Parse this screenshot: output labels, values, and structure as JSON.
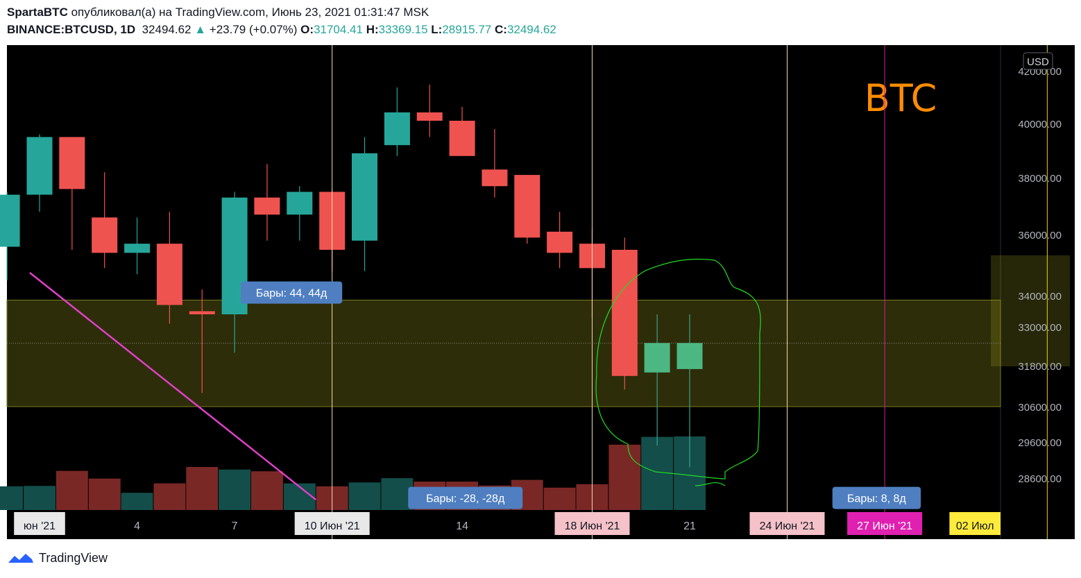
{
  "header": {
    "author": "SpartaBTC",
    "published_text": "опубликовал(а) на TradingView.com, Июнь 23, 2021 01:31:47 MSK",
    "symbol": "BINANCE:BTCUSD, 1D",
    "last": "32494.62",
    "change_arrow": "▲",
    "change": "+23.79 (+0.07%)",
    "o_label": "O:",
    "o_value": "31704.41",
    "h_label": "H:",
    "h_value": "33369.15",
    "l_label": "L:",
    "l_value": "28915.77",
    "c_label": "C:",
    "c_value": "32494.62"
  },
  "footer": {
    "brand": "TradingView"
  },
  "chart_data": {
    "type": "candlestick",
    "currency_badge": "USD",
    "watermark": "BTC",
    "y_ticks": [
      40000,
      38000,
      36000,
      34000,
      33000,
      31800,
      30600,
      29600,
      28600
    ],
    "y_tick_labels": [
      "40000.00",
      "38000.00",
      "36000.00",
      "34000.00",
      "33000.00",
      "31800.00",
      "30600.00",
      "29600.00",
      "28600.00"
    ],
    "y_top_label_partial": "42000.00",
    "x_labels": [
      {
        "text": "юн '21",
        "style": "plain-box",
        "day": 1
      },
      {
        "text": "4",
        "style": "plain",
        "day": 4
      },
      {
        "text": "7",
        "style": "plain",
        "day": 7
      },
      {
        "text": "10 Июн '21",
        "style": "plain-box",
        "day": 10
      },
      {
        "text": "14",
        "style": "plain",
        "day": 14
      },
      {
        "text": "18 Июн '21",
        "style": "pink",
        "day": 18
      },
      {
        "text": "21",
        "style": "plain",
        "day": 21
      },
      {
        "text": "24 Июн '21",
        "style": "pink",
        "day": 24
      },
      {
        "text": "27 Июн '21",
        "style": "magenta",
        "day": 27
      },
      {
        "text": "02 Июл",
        "style": "yellow",
        "day": 32
      }
    ],
    "candles": [
      {
        "date": "2021-05-31",
        "o": 35600,
        "h": 37500,
        "l": 34500,
        "c": 37400
      },
      {
        "date": "2021-06-01",
        "o": 37400,
        "h": 39600,
        "l": 36800,
        "c": 39500
      },
      {
        "date": "2021-06-02",
        "o": 39500,
        "h": 39500,
        "l": 35500,
        "c": 37600
      },
      {
        "date": "2021-06-03",
        "o": 36600,
        "h": 38200,
        "l": 34900,
        "c": 35400
      },
      {
        "date": "2021-06-04",
        "o": 35400,
        "h": 36600,
        "l": 34700,
        "c": 35700
      },
      {
        "date": "2021-06-05",
        "o": 35700,
        "h": 36800,
        "l": 33100,
        "c": 33700
      },
      {
        "date": "2021-06-06",
        "o": 33500,
        "h": 34200,
        "l": 31000,
        "c": 33400
      },
      {
        "date": "2021-06-07",
        "o": 33400,
        "h": 37500,
        "l": 32200,
        "c": 37300
      },
      {
        "date": "2021-06-08",
        "o": 37300,
        "h": 38500,
        "l": 35800,
        "c": 36700
      },
      {
        "date": "2021-06-09",
        "o": 36700,
        "h": 37700,
        "l": 35800,
        "c": 37500
      },
      {
        "date": "2021-06-10",
        "o": 37500,
        "h": 37600,
        "l": 34800,
        "c": 35500
      },
      {
        "date": "2021-06-11",
        "o": 35800,
        "h": 39500,
        "l": 34800,
        "c": 38900
      },
      {
        "date": "2021-06-12",
        "o": 39200,
        "h": 41300,
        "l": 38800,
        "c": 40400
      },
      {
        "date": "2021-06-13",
        "o": 40400,
        "h": 41400,
        "l": 39500,
        "c": 40100
      },
      {
        "date": "2021-06-14",
        "o": 40100,
        "h": 40600,
        "l": 38800,
        "c": 38800
      },
      {
        "date": "2021-06-15",
        "o": 38300,
        "h": 39800,
        "l": 37300,
        "c": 37700
      },
      {
        "date": "2021-06-16",
        "o": 38100,
        "h": 38100,
        "l": 35700,
        "c": 35900
      },
      {
        "date": "2021-06-17",
        "o": 36100,
        "h": 36800,
        "l": 34900,
        "c": 35400
      },
      {
        "date": "2021-06-18",
        "o": 35700,
        "h": 36200,
        "l": 33300,
        "c": 34900
      },
      {
        "date": "2021-06-19",
        "o": 35500,
        "h": 35900,
        "l": 31100,
        "c": 31500
      },
      {
        "date": "2021-06-20",
        "o": 31600,
        "h": 33400,
        "l": 29500,
        "c": 32500
      },
      {
        "date": "2021-06-21",
        "o": 31700,
        "h": 33400,
        "l": 28900,
        "c": 32500
      }
    ],
    "volume": [
      {
        "v": 0.55,
        "dir": "up"
      },
      {
        "v": 0.56,
        "dir": "up"
      },
      {
        "v": 0.91,
        "dir": "down"
      },
      {
        "v": 0.73,
        "dir": "down"
      },
      {
        "v": 0.4,
        "dir": "up"
      },
      {
        "v": 0.62,
        "dir": "down"
      },
      {
        "v": 1.0,
        "dir": "down"
      },
      {
        "v": 0.94,
        "dir": "up"
      },
      {
        "v": 0.9,
        "dir": "down"
      },
      {
        "v": 0.62,
        "dir": "up"
      },
      {
        "v": 0.55,
        "dir": "down"
      },
      {
        "v": 0.64,
        "dir": "up"
      },
      {
        "v": 0.74,
        "dir": "up"
      },
      {
        "v": 0.66,
        "dir": "down"
      },
      {
        "v": 0.66,
        "dir": "down"
      },
      {
        "v": 0.57,
        "dir": "down"
      },
      {
        "v": 0.7,
        "dir": "down"
      },
      {
        "v": 0.52,
        "dir": "down"
      },
      {
        "v": 0.6,
        "dir": "down"
      },
      {
        "v": 1.52,
        "dir": "down"
      },
      {
        "v": 1.7,
        "dir": "up"
      },
      {
        "v": 1.71,
        "dir": "up"
      }
    ],
    "zone": {
      "low": 30600,
      "high": 33500
    },
    "current_price": 32494.62,
    "vertical_lines": [
      {
        "day": 10,
        "color": "#f5deb3"
      },
      {
        "day": 18,
        "color": "#f5deb3"
      },
      {
        "day": 24,
        "color": "#f5deb3"
      },
      {
        "day": 27,
        "color": "#d81b9b"
      },
      {
        "day": 32,
        "color": "#e8d21a"
      }
    ],
    "annotations": [
      {
        "text": "Бары: 44, 44д",
        "day": 8.75,
        "price": 34100
      },
      {
        "text": "Бары: -28, -28д",
        "day": 14.1,
        "price": 28050
      },
      {
        "text": "Бары: 8, 8д",
        "day": 26.75,
        "price": 28050
      }
    ],
    "trendline": {
      "start": {
        "day": 0.7,
        "price": 34750
      },
      "end": {
        "day": 9.5,
        "price": 28000
      },
      "color": "#e040c8"
    },
    "highlight_ellipse_color": "#22dd22"
  }
}
